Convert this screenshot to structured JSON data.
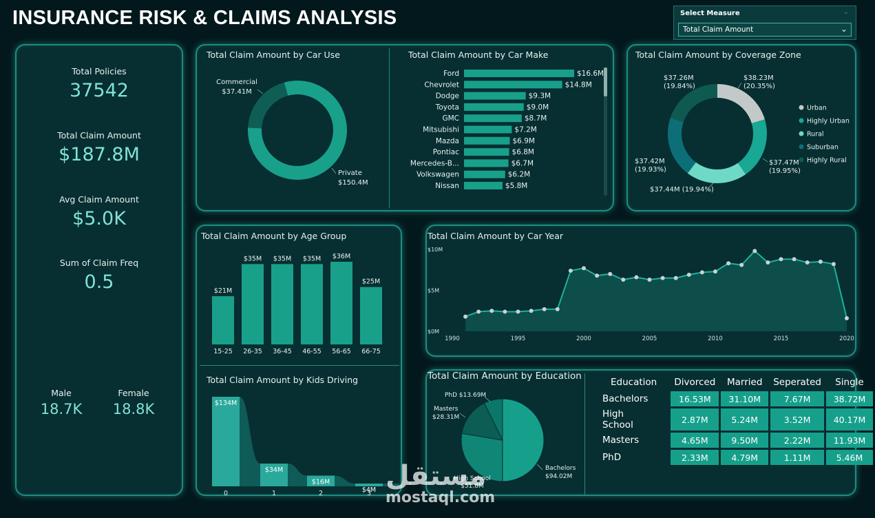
{
  "title": "INSURANCE RISK & CLAIMS ANALYSIS",
  "selector": {
    "label": "Select Measure",
    "value": "Total Claim Amount"
  },
  "kpis": {
    "total_policies_label": "Total Policies",
    "total_policies_value": "37542",
    "total_claim_label": "Total Claim Amount",
    "total_claim_value": "$187.8M",
    "avg_claim_label": "Avg Claim Amount",
    "avg_claim_value": "$5.0K",
    "claim_freq_label": "Sum of Claim Freq",
    "claim_freq_value": "0.5",
    "male_label": "Male",
    "male_value": "18.7K",
    "female_label": "Female",
    "female_value": "18.8K"
  },
  "watermark": {
    "arabic": "مستقل",
    "latin": "mostaql.com"
  },
  "chart_data": [
    {
      "id": "car_use",
      "type": "pie",
      "title": "Total Claim Amount by Car Use",
      "categories": [
        "Commercial",
        "Private"
      ],
      "values": [
        37.41,
        150.4
      ],
      "labels": [
        "$37.41M",
        "$150.4M"
      ],
      "colors": [
        "#0f5e55",
        "#18a08b"
      ]
    },
    {
      "id": "car_make",
      "type": "bar",
      "title": "Total Claim Amount by Car Make",
      "categories": [
        "Ford",
        "Chevrolet",
        "Dodge",
        "Toyota",
        "GMC",
        "Mitsubishi",
        "Mazda",
        "Pontiac",
        "Mercedes-B...",
        "Volkswagen",
        "Nissan"
      ],
      "values": [
        16.6,
        14.8,
        9.3,
        9.0,
        8.7,
        7.2,
        6.9,
        6.8,
        6.7,
        6.2,
        5.8
      ],
      "labels": [
        "$16.6M",
        "$14.8M",
        "$9.3M",
        "$9.0M",
        "$8.7M",
        "$7.2M",
        "$6.9M",
        "$6.8M",
        "$6.7M",
        "$6.2M",
        "$5.8M"
      ],
      "color": "#18a08b"
    },
    {
      "id": "coverage_zone",
      "type": "pie",
      "title": "Total Claim Amount by Coverage Zone",
      "categories": [
        "Urban",
        "Highly Urban",
        "Rural",
        "Suburban",
        "Highly Rural"
      ],
      "values": [
        38.23,
        37.47,
        37.44,
        37.42,
        37.26
      ],
      "labels": [
        "$38.23M\n(20.35%)",
        "$37.47M\n(19.95%)",
        "$37.44M (19.94%)",
        "$37.42M\n(19.93%)",
        "$37.26M\n(19.84%)"
      ],
      "colors": [
        "#c3c9c9",
        "#18a894",
        "#6fd9c8",
        "#0c6f78",
        "#0f5a50"
      ],
      "legend": "right"
    },
    {
      "id": "age_group",
      "type": "bar",
      "title": "Total Claim Amount by Age Group",
      "categories": [
        "15-25",
        "26-35",
        "36-45",
        "46-55",
        "56-65",
        "66-75"
      ],
      "values": [
        21,
        35,
        35,
        35,
        36,
        25
      ],
      "labels": [
        "$21M",
        "$35M",
        "$35M",
        "$35M",
        "$36M",
        "$25M"
      ],
      "color": "#18a08b"
    },
    {
      "id": "car_year",
      "type": "area",
      "title": "Total Claim Amount by Car Year",
      "x": [
        1991,
        1992,
        1993,
        1994,
        1995,
        1996,
        1997,
        1998,
        1999,
        2000,
        2001,
        2002,
        2003,
        2004,
        2005,
        2006,
        2007,
        2008,
        2009,
        2010,
        2011,
        2012,
        2013,
        2014,
        2015,
        2016,
        2017,
        2018,
        2019,
        2020
      ],
      "values": [
        1.8,
        2.4,
        2.5,
        2.4,
        2.4,
        2.5,
        2.7,
        2.7,
        7.4,
        7.7,
        6.8,
        7.0,
        6.3,
        6.6,
        6.3,
        6.5,
        6.5,
        6.9,
        7.2,
        7.3,
        8.3,
        8.1,
        9.8,
        8.4,
        8.8,
        8.8,
        8.4,
        8.5,
        8.2,
        1.6
      ],
      "xticks": [
        "1990",
        "1995",
        "2000",
        "2005",
        "2010",
        "2015",
        "2020"
      ],
      "yticks": [
        "$0M",
        "$5M",
        "$10M"
      ],
      "ylim": [
        0,
        10
      ],
      "color": "#0d4d4a"
    },
    {
      "id": "kids_driving",
      "type": "area",
      "title": "Total Claim Amount by Kids Driving",
      "categories": [
        "0",
        "1",
        "2",
        "3"
      ],
      "values": [
        134,
        34,
        16,
        4
      ],
      "labels": [
        "$134M",
        "$34M",
        "$16M",
        "$4M"
      ],
      "color": "#2aa89b"
    },
    {
      "id": "education",
      "type": "pie",
      "title": "Total Claim Amount by Education",
      "categories": [
        "Bachelors",
        "High School",
        "Masters",
        "PhD"
      ],
      "values": [
        94.02,
        51.8,
        28.31,
        13.69
      ],
      "labels": [
        "$94.02M",
        "$51.8M",
        "$28.31M",
        "$13.69M"
      ],
      "colors": [
        "#16a08c",
        "#108677",
        "#0c5e54",
        "#0a776a"
      ]
    },
    {
      "id": "education_matrix",
      "type": "table",
      "header": [
        "Education",
        "Divorced",
        "Married",
        "Seperated",
        "Single"
      ],
      "rows": [
        {
          "label": "Bachelors",
          "cells": [
            "16.53M",
            "31.10M",
            "7.67M",
            "38.72M"
          ]
        },
        {
          "label": "High School",
          "cells": [
            "2.87M",
            "5.24M",
            "3.52M",
            "40.17M"
          ]
        },
        {
          "label": "Masters",
          "cells": [
            "4.65M",
            "9.50M",
            "2.22M",
            "11.93M"
          ]
        },
        {
          "label": "PhD",
          "cells": [
            "2.33M",
            "4.79M",
            "1.11M",
            "5.46M"
          ]
        }
      ]
    }
  ]
}
